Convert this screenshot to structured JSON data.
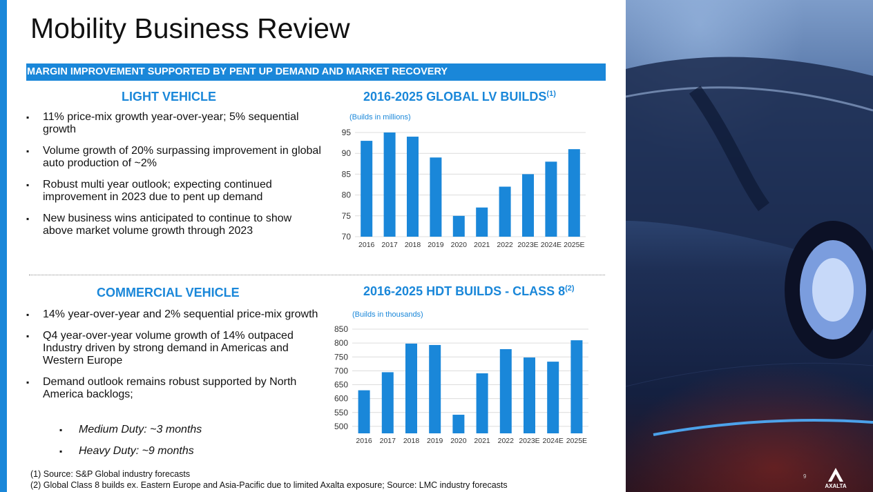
{
  "slide": {
    "title": "Mobility Business Review",
    "banner": "MARGIN IMPROVEMENT SUPPORTED BY PENT UP DEMAND AND MARKET RECOVERY",
    "page_number": "9",
    "logo_text": "AXALTA"
  },
  "light_vehicle": {
    "heading": "LIGHT VEHICLE",
    "bullets": [
      "11% price-mix growth year-over-year; 5% sequential growth",
      "Volume growth of 20% surpassing improvement in global auto production of ~2%",
      "Robust multi year outlook; expecting continued improvement in 2023 due to pent up demand",
      "New business wins anticipated to continue to show above market volume growth through 2023"
    ]
  },
  "commercial_vehicle": {
    "heading": "COMMERCIAL VEHICLE",
    "bullets": [
      "14% year-over-year and 2% sequential price-mix growth",
      "Q4 year-over-year volume growth of 14% outpaced Industry driven by strong demand in Americas and Western Europe",
      "Demand outlook remains robust supported by North America backlogs;"
    ],
    "sub_bullets": [
      "Medium Duty: ~3 months",
      "Heavy Duty: ~9 months"
    ]
  },
  "chart_data": [
    {
      "type": "bar",
      "title": "2016-2025 GLOBAL LV BUILDS",
      "title_sup": "(1)",
      "ylabel": "(Builds in millions)",
      "categories": [
        "2016",
        "2017",
        "2018",
        "2019",
        "2020",
        "2021",
        "2022",
        "2023E",
        "2024E",
        "2025E"
      ],
      "values": [
        93,
        95,
        94,
        89,
        75,
        77,
        82,
        85,
        88,
        91
      ],
      "ylim": [
        70,
        95
      ],
      "yticks": [
        70,
        75,
        80,
        85,
        90,
        95
      ],
      "grid": true,
      "color": "#1a87d9"
    },
    {
      "type": "bar",
      "title": "2016-2025 HDT BUILDS - CLASS 8",
      "title_sup": "(2)",
      "ylabel": "(Builds in thousands)",
      "categories": [
        "2016",
        "2017",
        "2018",
        "2019",
        "2020",
        "2021",
        "2022",
        "2023E",
        "2024E",
        "2025E"
      ],
      "values": [
        630,
        695,
        798,
        793,
        542,
        691,
        778,
        748,
        733,
        810
      ],
      "ylim": [
        475,
        850
      ],
      "yticks": [
        500,
        550,
        600,
        650,
        700,
        750,
        800,
        850
      ],
      "grid": true,
      "color": "#1a87d9"
    }
  ],
  "footnotes": [
    "(1) Source: S&P Global industry forecasts",
    "(2) Global Class 8 builds ex. Eastern Europe and Asia-Pacific due to limited Axalta exposure; Source: LMC industry forecasts"
  ]
}
